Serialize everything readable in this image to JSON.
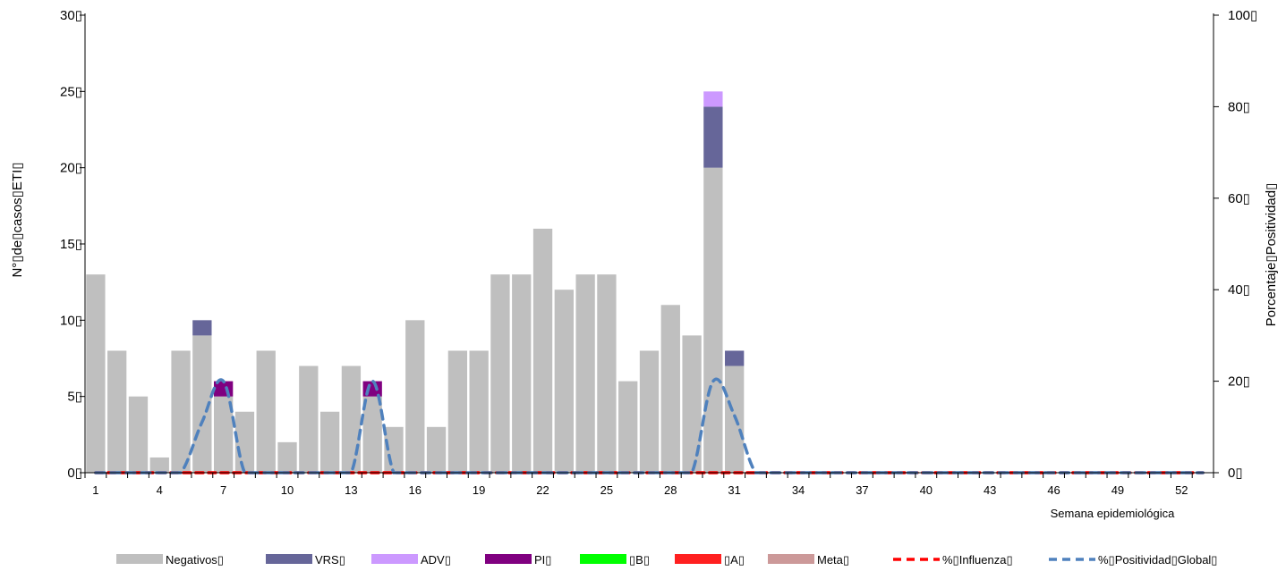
{
  "chart_data": {
    "type": "bar",
    "xlabel": "Semana epidemiológica",
    "ylabel": "N°▯de▯casos▯ETI▯",
    "y2label": "Porcentaje▯Positividad▯",
    "ylim": [
      0,
      30
    ],
    "y2lim": [
      0,
      100
    ],
    "yticks": [
      "0▯",
      "5▯",
      "10▯",
      "15▯",
      "20▯",
      "25▯",
      "30▯"
    ],
    "y2ticks": [
      "0▯",
      "20▯",
      "40▯",
      "60▯",
      "80▯",
      "100▯"
    ],
    "stacked": true,
    "categories": [
      1,
      2,
      3,
      4,
      5,
      6,
      7,
      8,
      9,
      10,
      11,
      12,
      13,
      14,
      15,
      16,
      17,
      18,
      19,
      20,
      21,
      22,
      23,
      24,
      25,
      26,
      27,
      28,
      29,
      30,
      31,
      32,
      33,
      34,
      35,
      36,
      37,
      38,
      39,
      40,
      41,
      42,
      43,
      44,
      45,
      46,
      47,
      48,
      49,
      50,
      51,
      52,
      53
    ],
    "tick_labels": [
      "1",
      "4",
      "7",
      "10",
      "13",
      "16",
      "19",
      "22",
      "25",
      "28",
      "31",
      "34",
      "37",
      "40",
      "43",
      "46",
      "49",
      "52"
    ],
    "series": [
      {
        "name": "Negativos▯",
        "color": "#bfbfbf",
        "kind": "bar",
        "values": [
          13,
          8,
          5,
          1,
          8,
          9,
          5,
          4,
          8,
          2,
          7,
          4,
          7,
          5,
          3,
          10,
          3,
          8,
          8,
          13,
          13,
          16,
          12,
          13,
          13,
          6,
          8,
          11,
          9,
          20,
          7,
          0,
          0,
          0,
          0,
          0,
          0,
          0,
          0,
          0,
          0,
          0,
          0,
          0,
          0,
          0,
          0,
          0,
          0,
          0,
          0,
          0,
          0
        ]
      },
      {
        "name": "VRS▯",
        "color": "#666699",
        "kind": "bar",
        "values": [
          0,
          0,
          0,
          0,
          0,
          1,
          0,
          0,
          0,
          0,
          0,
          0,
          0,
          0,
          0,
          0,
          0,
          0,
          0,
          0,
          0,
          0,
          0,
          0,
          0,
          0,
          0,
          0,
          0,
          4,
          1,
          0,
          0,
          0,
          0,
          0,
          0,
          0,
          0,
          0,
          0,
          0,
          0,
          0,
          0,
          0,
          0,
          0,
          0,
          0,
          0,
          0,
          0
        ]
      },
      {
        "name": "ADV▯",
        "color": "#cc99ff",
        "kind": "bar",
        "values": [
          0,
          0,
          0,
          0,
          0,
          0,
          0,
          0,
          0,
          0,
          0,
          0,
          0,
          0,
          0,
          0,
          0,
          0,
          0,
          0,
          0,
          0,
          0,
          0,
          0,
          0,
          0,
          0,
          0,
          1,
          0,
          0,
          0,
          0,
          0,
          0,
          0,
          0,
          0,
          0,
          0,
          0,
          0,
          0,
          0,
          0,
          0,
          0,
          0,
          0,
          0,
          0,
          0
        ]
      },
      {
        "name": "PI▯",
        "color": "#800080",
        "kind": "bar",
        "values": [
          0,
          0,
          0,
          0,
          0,
          0,
          1,
          0,
          0,
          0,
          0,
          0,
          0,
          1,
          0,
          0,
          0,
          0,
          0,
          0,
          0,
          0,
          0,
          0,
          0,
          0,
          0,
          0,
          0,
          0,
          0,
          0,
          0,
          0,
          0,
          0,
          0,
          0,
          0,
          0,
          0,
          0,
          0,
          0,
          0,
          0,
          0,
          0,
          0,
          0,
          0,
          0,
          0
        ]
      },
      {
        "name": "▯B▯",
        "color": "#00ff00",
        "kind": "bar",
        "values": [
          0,
          0,
          0,
          0,
          0,
          0,
          0,
          0,
          0,
          0,
          0,
          0,
          0,
          0,
          0,
          0,
          0,
          0,
          0,
          0,
          0,
          0,
          0,
          0,
          0,
          0,
          0,
          0,
          0,
          0,
          0,
          0,
          0,
          0,
          0,
          0,
          0,
          0,
          0,
          0,
          0,
          0,
          0,
          0,
          0,
          0,
          0,
          0,
          0,
          0,
          0,
          0,
          0
        ]
      },
      {
        "name": "▯A▯",
        "color": "#ff2020",
        "kind": "bar",
        "values": [
          0,
          0,
          0,
          0,
          0,
          0,
          0,
          0,
          0,
          0,
          0,
          0,
          0,
          0,
          0,
          0,
          0,
          0,
          0,
          0,
          0,
          0,
          0,
          0,
          0,
          0,
          0,
          0,
          0,
          0,
          0,
          0,
          0,
          0,
          0,
          0,
          0,
          0,
          0,
          0,
          0,
          0,
          0,
          0,
          0,
          0,
          0,
          0,
          0,
          0,
          0,
          0,
          0
        ]
      },
      {
        "name": "Meta▯",
        "color": "#cc9999",
        "kind": "bar",
        "values": [
          0,
          0,
          0,
          0,
          0,
          0,
          0,
          0,
          0,
          0,
          0,
          0,
          0,
          0,
          0,
          0,
          0,
          0,
          0,
          0,
          0,
          0,
          0,
          0,
          0,
          0,
          0,
          0,
          0,
          0,
          0,
          0,
          0,
          0,
          0,
          0,
          0,
          0,
          0,
          0,
          0,
          0,
          0,
          0,
          0,
          0,
          0,
          0,
          0,
          0,
          0,
          0,
          0
        ]
      },
      {
        "name": "%▯Influenza▯",
        "color": "#ff0000",
        "kind": "line",
        "axis": "y2",
        "values": [
          0,
          0,
          0,
          0,
          0,
          0,
          0,
          0,
          0,
          0,
          0,
          0,
          0,
          0,
          0,
          0,
          0,
          0,
          0,
          0,
          0,
          0,
          0,
          0,
          0,
          0,
          0,
          0,
          0,
          0,
          0,
          0,
          0,
          0,
          0,
          0,
          0,
          0,
          0,
          0,
          0,
          0,
          0,
          0,
          0,
          0,
          0,
          0,
          0,
          0,
          0,
          0,
          0
        ]
      },
      {
        "name": "%▯Positividad▯Global▯",
        "color": "#4f81bd",
        "kind": "line",
        "axis": "y2",
        "values": [
          0,
          0,
          0,
          0,
          0,
          11.1,
          20,
          0,
          0,
          0,
          0,
          0,
          0,
          20,
          0,
          0,
          0,
          0,
          0,
          0,
          0,
          0,
          0,
          0,
          0,
          0,
          0,
          0,
          0,
          20,
          12.5,
          0,
          0,
          0,
          0,
          0,
          0,
          0,
          0,
          0,
          0,
          0,
          0,
          0,
          0,
          0,
          0,
          0,
          0,
          0,
          0,
          0,
          0
        ]
      }
    ],
    "legend_position": "bottom",
    "grid": false
  }
}
